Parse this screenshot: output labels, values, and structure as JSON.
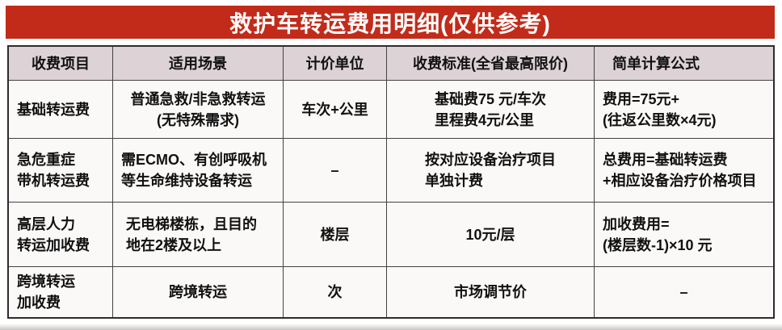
{
  "title": "救护车转运费用明细(仅供参考)",
  "colors": {
    "banner_red": "#c22b1a",
    "header_bg": "#ddd2d6",
    "cell_bg": "#fbf9f8",
    "grid_line": "#454142",
    "title_text": "#ffffff",
    "body_text": "#111111"
  },
  "table": {
    "headers": [
      "收费项目",
      "适用场景",
      "计价单位",
      "收费标准(全省最高限价)",
      "简单计算公式"
    ],
    "rows": [
      {
        "item1": "基础转运费",
        "scene1": "普通急救/非急救转运",
        "scene2": "(无特殊需求)",
        "unit1": "车次+公里",
        "std1": "基础费75 元/车次",
        "std2": "里程费4元/公里",
        "formula1": "费用=75元+",
        "formula2": "(往返公里数×4元)"
      },
      {
        "item1": "急危重症",
        "item2": "带机转运费",
        "scene1": "需ECMO、有创呼吸机",
        "scene2": "等生命维持设备转运",
        "unit1": "–",
        "std1": "按对应设备治疗项目",
        "std2": "单独计费",
        "formula1": "总费用=基础转运费",
        "formula2": "+相应设备治疗价格项目"
      },
      {
        "item1": "高层人力",
        "item2": "转运加收费",
        "scene1": "无电梯楼栋，且目的",
        "scene2": "地在2楼及以上",
        "unit1": "楼层",
        "std1": "10元/层",
        "formula1": "加收费用=",
        "formula2": "(楼层数-1)×10 元"
      },
      {
        "item1": "跨境转运",
        "item2": "加收费",
        "scene1": "跨境转运",
        "unit1": "次",
        "std1": "市场调节价",
        "formula1": "–"
      }
    ]
  }
}
